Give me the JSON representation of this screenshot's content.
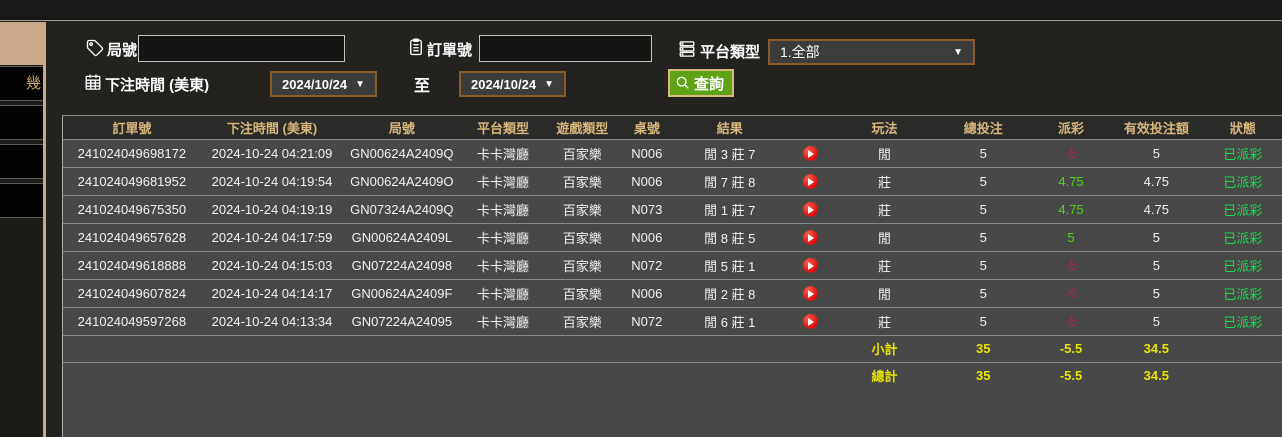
{
  "colors": {
    "accent_tan": "#c8a98a",
    "button_green": "#5ea316",
    "header_gold": "#d6b77c",
    "positive_green": "#52d417",
    "negative_red": "#bb2342",
    "status_green": "#17dd4d",
    "totals_yellow": "#e8e400"
  },
  "sidebar": {
    "items": [
      {
        "label": "幾"
      },
      {
        "label": ""
      },
      {
        "label": ""
      },
      {
        "label": ""
      }
    ]
  },
  "filters": {
    "round_label": "局號",
    "round_value": "",
    "order_label": "訂單號",
    "order_value": "",
    "platform_label": "平台類型",
    "platform_value": "1.全部",
    "bet_time_label": "下注時間 (美東)",
    "date_from": "2024/10/24",
    "to_label": "至",
    "date_to": "2024/10/24",
    "search_label": "查詢"
  },
  "table": {
    "columns": [
      "訂單號",
      "下注時間 (美東)",
      "局號",
      "平台類型",
      "遊戲類型",
      "桌號",
      "結果",
      "",
      "玩法",
      "總投注",
      "派彩",
      "有效投注額",
      "狀態"
    ],
    "rows": [
      {
        "order": "241024049698172",
        "time": "2024-10-24 04:21:09",
        "round": "GN00624A2409Q",
        "platform": "卡卡灣廳",
        "game": "百家樂",
        "table_no": "N006",
        "result": "閒 3 莊 7",
        "play": "閒",
        "total_bet": "5",
        "payout": "-5",
        "valid_bet": "5",
        "status": "已派彩"
      },
      {
        "order": "241024049681952",
        "time": "2024-10-24 04:19:54",
        "round": "GN00624A2409O",
        "platform": "卡卡灣廳",
        "game": "百家樂",
        "table_no": "N006",
        "result": "閒 7 莊 8",
        "play": "莊",
        "total_bet": "5",
        "payout": "4.75",
        "valid_bet": "4.75",
        "status": "已派彩"
      },
      {
        "order": "241024049675350",
        "time": "2024-10-24 04:19:19",
        "round": "GN07324A2409Q",
        "platform": "卡卡灣廳",
        "game": "百家樂",
        "table_no": "N073",
        "result": "閒 1 莊 7",
        "play": "莊",
        "total_bet": "5",
        "payout": "4.75",
        "valid_bet": "4.75",
        "status": "已派彩"
      },
      {
        "order": "241024049657628",
        "time": "2024-10-24 04:17:59",
        "round": "GN00624A2409L",
        "platform": "卡卡灣廳",
        "game": "百家樂",
        "table_no": "N006",
        "result": "閒 8 莊 5",
        "play": "閒",
        "total_bet": "5",
        "payout": "5",
        "valid_bet": "5",
        "status": "已派彩"
      },
      {
        "order": "241024049618888",
        "time": "2024-10-24 04:15:03",
        "round": "GN07224A24098",
        "platform": "卡卡灣廳",
        "game": "百家樂",
        "table_no": "N072",
        "result": "閒 5 莊 1",
        "play": "莊",
        "total_bet": "5",
        "payout": "-5",
        "valid_bet": "5",
        "status": "已派彩"
      },
      {
        "order": "241024049607824",
        "time": "2024-10-24 04:14:17",
        "round": "GN00624A2409F",
        "platform": "卡卡灣廳",
        "game": "百家樂",
        "table_no": "N006",
        "result": "閒 2 莊 8",
        "play": "閒",
        "total_bet": "5",
        "payout": "-5",
        "valid_bet": "5",
        "status": "已派彩"
      },
      {
        "order": "241024049597268",
        "time": "2024-10-24 04:13:34",
        "round": "GN07224A24095",
        "platform": "卡卡灣廳",
        "game": "百家樂",
        "table_no": "N072",
        "result": "閒 6 莊 1",
        "play": "莊",
        "total_bet": "5",
        "payout": "-5",
        "valid_bet": "5",
        "status": "已派彩"
      }
    ],
    "subtotal": {
      "label": "小計",
      "total_bet": "35",
      "payout": "-5.5",
      "valid_bet": "34.5"
    },
    "total": {
      "label": "總計",
      "total_bet": "35",
      "payout": "-5.5",
      "valid_bet": "34.5"
    }
  }
}
